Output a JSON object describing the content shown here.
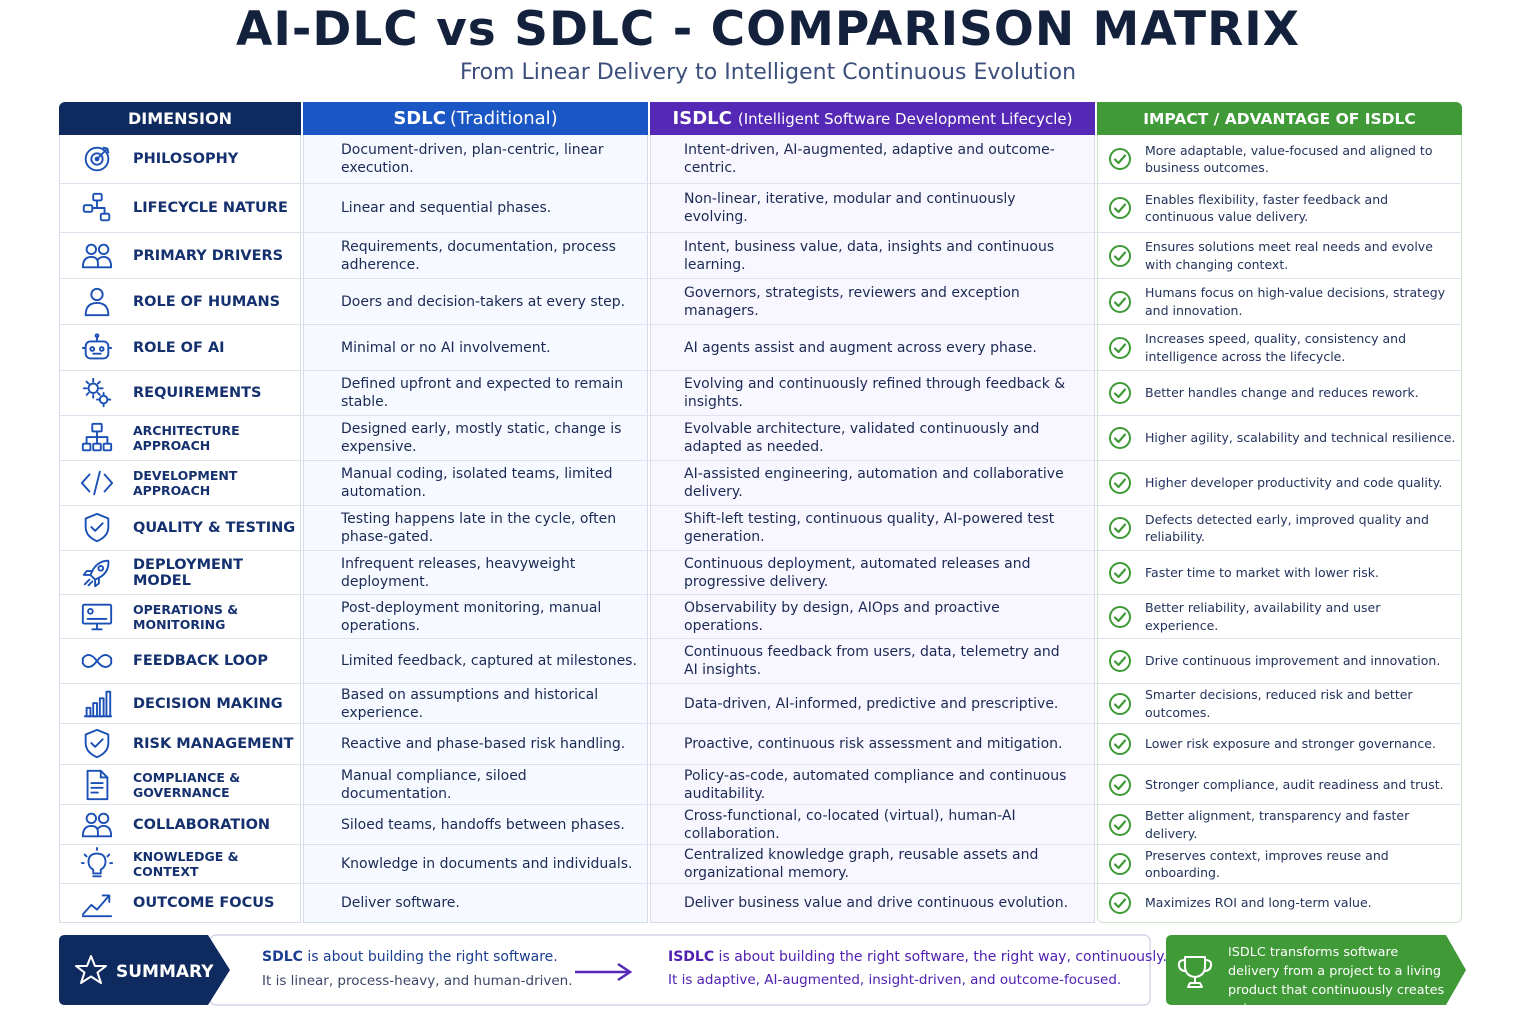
{
  "title": "AI-DLC vs SDLC - COMPARISON MATRIX",
  "subtitle": "From Linear Delivery to Intelligent Continuous Evolution",
  "headers": {
    "dimension": "DIMENSION",
    "sdlc": "SDLC",
    "sdlc_sub": "(Traditional)",
    "isdlc": "ISDLC",
    "isdlc_sub": "(Intelligent Software Development Lifecycle)",
    "impact": "IMPACT / ADVANTAGE OF ISDLC"
  },
  "colors": {
    "dimension_header": "#0f2a5e",
    "sdlc_header": "#1a56c4",
    "isdlc_header": "#5528b5",
    "impact_header": "#3f9a37",
    "check": "#3f9a37"
  },
  "rows": [
    {
      "icon": "target-icon",
      "dimension": "PHILOSOPHY",
      "sdlc": "Document-driven, plan-centric, linear execution.",
      "isdlc": "Intent-driven, AI-augmented, adaptive and outcome-centric.",
      "impact": "More adaptable, value-focused and aligned to business outcomes."
    },
    {
      "icon": "flow-icon",
      "dimension": "LIFECYCLE NATURE",
      "sdlc": "Linear and sequential phases.",
      "isdlc": "Non-linear, iterative, modular and continuously evolving.",
      "impact": "Enables flexibility, faster feedback and continuous value delivery."
    },
    {
      "icon": "people-icon",
      "dimension": "PRIMARY DRIVERS",
      "sdlc": "Requirements, documentation, process adherence.",
      "isdlc": "Intent, business value, data, insights and continuous learning.",
      "impact": "Ensures solutions meet real needs and evolve with changing context."
    },
    {
      "icon": "person-icon",
      "dimension": "ROLE OF HUMANS",
      "sdlc": "Doers and decision-takers at every step.",
      "isdlc": "Governors, strategists, reviewers and exception managers.",
      "impact": "Humans focus on high-value decisions, strategy and innovation."
    },
    {
      "icon": "robot-icon",
      "dimension": "ROLE OF AI",
      "sdlc": "Minimal or no AI involvement.",
      "isdlc": "AI agents assist and augment across every phase.",
      "impact": "Increases speed, quality, consistency and intelligence across the lifecycle."
    },
    {
      "icon": "gears-icon",
      "dimension": "REQUIREMENTS",
      "sdlc": "Defined upfront and expected to remain stable.",
      "isdlc": "Evolving and continuously refined through feedback & insights.",
      "impact": "Better handles change and reduces rework."
    },
    {
      "icon": "hierarchy-icon",
      "dimension": "ARCHITECTURE APPROACH",
      "sdlc": "Designed early, mostly static, change is expensive.",
      "isdlc": "Evolvable architecture, validated continuously and adapted as needed.",
      "impact": "Higher agility, scalability and technical resilience."
    },
    {
      "icon": "code-icon",
      "dimension": "DEVELOPMENT APPROACH",
      "sdlc": "Manual coding, isolated teams, limited automation.",
      "isdlc": "AI-assisted engineering, automation and collaborative delivery.",
      "impact": "Higher developer productivity and code quality."
    },
    {
      "icon": "shield-check-icon",
      "dimension": "QUALITY & TESTING",
      "sdlc": "Testing happens late in the cycle, often phase-gated.",
      "isdlc": "Shift-left testing, continuous quality, AI-powered test generation.",
      "impact": "Defects detected early, improved quality and reliability."
    },
    {
      "icon": "rocket-icon",
      "dimension": "DEPLOYMENT MODEL",
      "sdlc": "Infrequent releases, heavyweight deployment.",
      "isdlc": "Continuous deployment, automated releases and progressive delivery.",
      "impact": "Faster time to market with lower risk."
    },
    {
      "icon": "monitor-icon",
      "dimension": "OPERATIONS & MONITORING",
      "sdlc": "Post-deployment monitoring, manual operations.",
      "isdlc": "Observability by design, AIOps and proactive operations.",
      "impact": "Better reliability, availability and user experience."
    },
    {
      "icon": "infinity-icon",
      "dimension": "FEEDBACK LOOP",
      "sdlc": "Limited feedback, captured at milestones.",
      "isdlc": "Continuous feedback from users, data, telemetry and AI insights.",
      "impact": "Drive continuous improvement and innovation."
    },
    {
      "icon": "bar-chart-icon",
      "dimension": "DECISION MAKING",
      "sdlc": "Based on assumptions and historical experience.",
      "isdlc": "Data-driven, AI-informed, predictive and prescriptive.",
      "impact": "Smarter decisions, reduced risk and better outcomes."
    },
    {
      "icon": "shield-icon",
      "dimension": "RISK MANAGEMENT",
      "sdlc": "Reactive and phase-based risk handling.",
      "isdlc": "Proactive, continuous risk assessment and mitigation.",
      "impact": "Lower risk exposure and stronger governance."
    },
    {
      "icon": "document-icon",
      "dimension": "COMPLIANCE & GOVERNANCE",
      "sdlc": "Manual compliance, siloed documentation.",
      "isdlc": "Policy-as-code, automated compliance and continuous auditability.",
      "impact": "Stronger compliance, audit readiness and trust."
    },
    {
      "icon": "team-icon",
      "dimension": "COLLABORATION",
      "sdlc": "Siloed teams, handoffs between phases.",
      "isdlc": "Cross-functional, co-located (virtual), human-AI collaboration.",
      "impact": "Better alignment, transparency and faster delivery."
    },
    {
      "icon": "lightbulb-icon",
      "dimension": "KNOWLEDGE & CONTEXT",
      "sdlc": "Knowledge in documents and individuals.",
      "isdlc": "Centralized knowledge graph, reusable assets and organizational memory.",
      "impact": "Preserves context, improves reuse and onboarding."
    },
    {
      "icon": "trend-up-icon",
      "dimension": "OUTCOME FOCUS",
      "sdlc": "Deliver software.",
      "isdlc": "Deliver business value and drive continuous evolution.",
      "impact": "Maximizes ROI and long-term value."
    }
  ],
  "summary": {
    "label": "SUMMARY",
    "sdlc_head_bold": "SDLC",
    "sdlc_head_rest": " is about building the right software.",
    "sdlc_detail": "It is linear, process-heavy, and human-driven.",
    "isdlc_head_bold": "ISDLC",
    "isdlc_head_rest": " is about building the right software, the right way, continuously.",
    "isdlc_detail": "It is adaptive, AI-augmented, insight-driven, and outcome-focused.",
    "conclusion": "ISDLC transforms software delivery from a project to a living product that continuously creates value."
  }
}
